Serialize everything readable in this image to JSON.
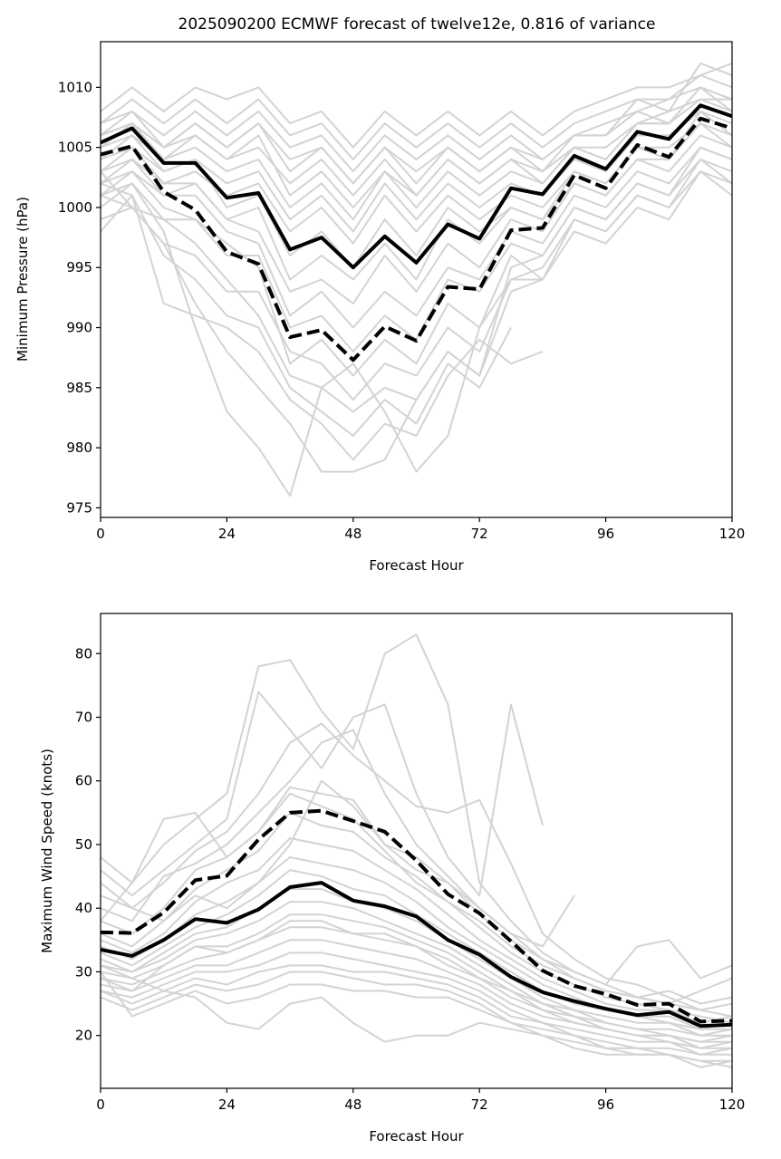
{
  "chart_data": [
    {
      "type": "line",
      "title": "2025090200 ECMWF forecast of twelve12e, 0.816 of variance",
      "xlabel": "Forecast Hour",
      "ylabel": "Minimum Pressure (hPa)",
      "xlim": [
        0,
        120
      ],
      "ylim": [
        974.2,
        1013.8
      ],
      "xticks": [
        0,
        24,
        48,
        72,
        96,
        120
      ],
      "yticks": [
        975,
        980,
        985,
        990,
        995,
        1000,
        1005,
        1010
      ],
      "grid": false,
      "x": [
        0,
        6,
        12,
        18,
        24,
        30,
        36,
        42,
        48,
        54,
        60,
        66,
        72,
        78,
        84,
        90,
        96,
        102,
        108,
        114,
        120
      ],
      "series": [
        {
          "name": "mean",
          "style": "solid",
          "color": "#000000",
          "values": [
            1005.4,
            1006.6,
            1003.7,
            1003.7,
            1000.8,
            1001.2,
            996.5,
            997.5,
            995.0,
            997.6,
            995.4,
            998.6,
            997.4,
            1001.6,
            1001.1,
            1004.3,
            1003.2,
            1006.3,
            1005.7,
            1008.5,
            1007.6
          ]
        },
        {
          "name": "weighted",
          "style": "dashed",
          "color": "#000000",
          "values": [
            1004.4,
            1005.1,
            1001.3,
            999.8,
            996.3,
            995.3,
            989.2,
            989.8,
            987.3,
            990.1,
            988.9,
            993.4,
            993.2,
            998.1,
            998.3,
            1002.7,
            1001.6,
            1005.2,
            1004.2,
            1007.4,
            1006.6
          ]
        }
      ],
      "members_color": "#d3d3d3",
      "members": [
        [
          1008,
          1010,
          1008,
          1010,
          1009,
          1010,
          1007,
          1008,
          1005,
          1008,
          1006,
          1008,
          1006,
          1008,
          1006,
          1008,
          1009,
          1010,
          1010,
          1011,
          1012
        ],
        [
          1007,
          1009,
          1007,
          1009,
          1007,
          1009,
          1006,
          1007,
          1004,
          1007,
          1005,
          1007,
          1005,
          1007,
          1005,
          1007,
          1008,
          1009,
          1008,
          1012,
          1011
        ],
        [
          1006,
          1008,
          1006,
          1008,
          1006,
          1008,
          1005,
          1006,
          1003,
          1006,
          1004,
          1006,
          1004,
          1006,
          1004,
          1006,
          1007,
          1008,
          1007,
          1010,
          1009
        ],
        [
          1007,
          1008,
          1005,
          1007,
          1005,
          1007,
          1003,
          1005,
          1002,
          1005,
          1002,
          1005,
          1003,
          1005,
          1003,
          1006,
          1006,
          1008,
          1009,
          1011,
          1010
        ],
        [
          1006,
          1007,
          1004,
          1006,
          1004,
          1005,
          1002,
          1004,
          1001,
          1004,
          1001,
          1004,
          1002,
          1004,
          1003,
          1005,
          1005,
          1007,
          1008,
          1009,
          1008
        ],
        [
          1005,
          1006,
          1004,
          1005,
          1003,
          1004,
          1000,
          1002,
          999,
          1003,
          1000,
          1003,
          1001,
          1003,
          1002,
          1005,
          1004,
          1007,
          1007,
          1009,
          1009
        ],
        [
          1004,
          1006,
          1003,
          1004,
          1002,
          1003,
          999,
          1001,
          998,
          1002,
          999,
          1002,
          1000,
          1002,
          1001,
          1004,
          1003,
          1006,
          1006,
          1008,
          1007
        ],
        [
          1004,
          1005,
          1002,
          1003,
          1001,
          1002,
          998,
          1000,
          997,
          1001,
          998,
          1001,
          999,
          1001,
          1000,
          1003,
          1002,
          1005,
          1005,
          1007,
          1006
        ],
        [
          1003,
          1005,
          1003,
          1004,
          1000,
          1001,
          996,
          998,
          995,
          999,
          996,
          1000,
          998,
          1000,
          999,
          1002,
          1001,
          1004,
          1004,
          1007,
          1005
        ],
        [
          1002,
          1004,
          1001,
          1002,
          999,
          1000,
          994,
          996,
          994,
          997,
          994,
          999,
          997,
          1000,
          999,
          1003,
          1002,
          1005,
          1004,
          1008,
          1006
        ],
        [
          1003,
          1004,
          1002,
          1002,
          999,
          998,
          993,
          994,
          992,
          996,
          993,
          997,
          995,
          999,
          998,
          1002,
          1001,
          1004,
          1003,
          1006,
          1005
        ],
        [
          1002,
          1003,
          1001,
          1001,
          998,
          997,
          991,
          993,
          990,
          993,
          991,
          995,
          994,
          998,
          997,
          1001,
          1000,
          1003,
          1002,
          1005,
          1004
        ],
        [
          1001,
          1003,
          1000,
          999,
          996,
          996,
          990,
          991,
          988,
          991,
          989,
          994,
          993,
          997,
          996,
          1000,
          999,
          1002,
          1001,
          1004,
          1003
        ],
        [
          1000,
          1002,
          999,
          999,
          997,
          995,
          987,
          989,
          986,
          989,
          987,
          992,
          990,
          996,
          994,
          999,
          998,
          1001,
          1000,
          1004,
          1002
        ],
        [
          1001,
          1000,
          997,
          996,
          993,
          993,
          988,
          987,
          984,
          987,
          986,
          990,
          988,
          994,
          994,
          998,
          997,
          1000,
          999,
          1003,
          1001
        ],
        [
          999,
          1000,
          999,
          997,
          994,
          991,
          986,
          985,
          983,
          985,
          984,
          988,
          986,
          993,
          994,
          null,
          null,
          null,
          null,
          null,
          null
        ],
        [
          998,
          1001,
          996,
          994,
          991,
          990,
          985,
          983,
          981,
          984,
          982,
          987,
          985,
          990,
          null,
          null,
          null,
          null,
          null,
          null,
          null
        ],
        [
          1002,
          1001,
          992,
          991,
          990,
          988,
          984,
          982,
          979,
          982,
          981,
          986,
          989,
          987,
          988,
          null,
          null,
          null,
          null,
          null,
          null
        ],
        [
          1003,
          1000,
          997,
          992,
          988,
          985,
          982,
          978,
          978,
          979,
          984,
          988,
          986,
          995,
          996,
          1000,
          999,
          1002,
          1001,
          1005,
          1004
        ],
        [
          1001,
          1002,
          998,
          990,
          983,
          980,
          976,
          985,
          987,
          983,
          978,
          981,
          990,
          994,
          995,
          999,
          998,
          1001,
          1000,
          1003,
          1002
        ],
        [
          1006,
          1007,
          1005,
          1006,
          1004,
          1006,
          1001,
          1003,
          1000,
          1003,
          1001,
          1004,
          1002,
          1004,
          1002,
          1005,
          1004,
          1007,
          1007,
          1010,
          1009
        ],
        [
          1005,
          1007,
          1005,
          1007,
          1005,
          1007,
          1004,
          1005,
          1002,
          1005,
          1003,
          1005,
          1003,
          1005,
          1004,
          1006,
          1006,
          1009,
          1009,
          1010,
          1008
        ]
      ]
    },
    {
      "type": "line",
      "title": "",
      "xlabel": "Forecast Hour",
      "ylabel": "Maximum Wind Speed (knots)",
      "xlim": [
        0,
        120
      ],
      "ylim": [
        11.7,
        86.3
      ],
      "xticks": [
        0,
        24,
        48,
        72,
        96,
        120
      ],
      "yticks": [
        20,
        30,
        40,
        50,
        60,
        70,
        80
      ],
      "grid": false,
      "x": [
        0,
        6,
        12,
        18,
        24,
        30,
        36,
        42,
        48,
        54,
        60,
        66,
        72,
        78,
        84,
        90,
        96,
        102,
        108,
        114,
        120
      ],
      "series": [
        {
          "name": "mean",
          "style": "solid",
          "color": "#000000",
          "values": [
            33.5,
            32.5,
            35.0,
            38.3,
            37.7,
            39.8,
            43.3,
            44.0,
            41.2,
            40.3,
            38.7,
            35.0,
            32.7,
            29.2,
            26.8,
            25.4,
            24.2,
            23.2,
            23.7,
            21.5,
            21.7
          ]
        },
        {
          "name": "weighted",
          "style": "dashed",
          "color": "#000000",
          "values": [
            36.2,
            36.1,
            39.3,
            44.4,
            45.1,
            50.8,
            55.0,
            55.3,
            53.7,
            52.0,
            47.5,
            42.2,
            39.2,
            34.8,
            30.2,
            27.8,
            26.5,
            24.8,
            25.0,
            22.2,
            22.3
          ]
        }
      ],
      "members_color": "#d3d3d3",
      "members": [
        [
          48,
          44,
          50,
          54,
          58,
          78,
          79,
          71,
          65,
          80,
          83,
          72,
          44,
          38,
          33,
          30,
          28,
          26,
          27,
          25,
          26
        ],
        [
          46,
          42,
          46,
          50,
          54,
          74,
          68,
          62,
          70,
          72,
          58,
          48,
          42,
          72,
          53,
          null,
          null,
          null,
          null,
          null,
          null
        ],
        [
          42,
          40,
          44,
          49,
          52,
          58,
          66,
          69,
          64,
          60,
          56,
          55,
          57,
          47,
          36,
          32,
          29,
          28,
          26,
          24,
          25
        ],
        [
          40,
          38,
          45,
          47,
          50,
          55,
          60,
          66,
          68,
          58,
          50,
          45,
          40,
          36,
          34,
          42,
          null,
          null,
          null,
          null,
          null
        ],
        [
          38,
          36,
          40,
          46,
          48,
          52,
          59,
          58,
          57,
          50,
          48,
          44,
          39,
          35,
          32,
          29,
          27,
          26,
          25,
          24,
          23
        ],
        [
          36,
          34,
          38,
          43,
          46,
          49,
          55,
          53,
          52,
          48,
          45,
          41,
          37,
          33,
          30,
          28,
          26,
          25,
          24,
          23,
          22
        ],
        [
          35,
          33,
          36,
          41,
          44,
          46,
          51,
          50,
          49,
          46,
          43,
          39,
          35,
          32,
          29,
          27,
          25,
          24,
          24,
          22,
          23
        ],
        [
          34,
          32,
          35,
          39,
          41,
          44,
          48,
          47,
          46,
          44,
          41,
          37,
          34,
          31,
          28,
          26,
          24,
          23,
          23,
          21,
          22
        ],
        [
          33,
          31,
          34,
          37,
          39,
          42,
          46,
          45,
          43,
          42,
          39,
          36,
          33,
          30,
          27,
          25,
          24,
          23,
          22,
          21,
          21
        ],
        [
          32,
          30,
          33,
          36,
          37,
          40,
          43,
          43,
          41,
          40,
          38,
          35,
          32,
          29,
          26,
          24,
          23,
          22,
          22,
          20,
          21
        ],
        [
          31,
          30,
          32,
          35,
          36,
          38,
          41,
          41,
          40,
          38,
          36,
          34,
          31,
          28,
          25,
          24,
          22,
          21,
          21,
          20,
          20
        ],
        [
          30,
          29,
          31,
          34,
          34,
          36,
          39,
          39,
          38,
          37,
          35,
          33,
          30,
          27,
          25,
          23,
          22,
          21,
          20,
          19,
          20
        ],
        [
          29,
          28,
          30,
          32,
          33,
          35,
          37,
          37,
          36,
          35,
          34,
          32,
          29,
          26,
          24,
          23,
          21,
          20,
          20,
          19,
          19
        ],
        [
          28,
          27,
          29,
          31,
          31,
          33,
          35,
          35,
          34,
          33,
          32,
          30,
          28,
          25,
          23,
          22,
          21,
          20,
          19,
          18,
          19
        ],
        [
          27,
          26,
          28,
          30,
          30,
          31,
          33,
          33,
          32,
          31,
          30,
          29,
          27,
          24,
          22,
          21,
          20,
          19,
          19,
          17,
          18
        ],
        [
          27,
          25,
          27,
          29,
          28,
          30,
          31,
          31,
          30,
          30,
          29,
          28,
          26,
          23,
          22,
          20,
          19,
          18,
          18,
          17,
          17
        ],
        [
          26,
          24,
          26,
          28,
          27,
          28,
          30,
          30,
          29,
          28,
          28,
          27,
          25,
          22,
          21,
          20,
          18,
          18,
          17,
          16,
          16
        ],
        [
          30,
          23,
          25,
          27,
          25,
          26,
          28,
          28,
          27,
          27,
          26,
          26,
          24,
          22,
          20,
          19,
          18,
          17,
          17,
          15,
          16
        ],
        [
          31,
          29,
          27,
          26,
          22,
          21,
          25,
          26,
          22,
          19,
          20,
          20,
          22,
          21,
          20,
          18,
          17,
          17,
          17,
          16,
          15
        ],
        [
          44,
          40,
          38,
          42,
          40,
          44,
          50,
          60,
          56,
          50,
          46,
          44,
          40,
          36,
          32,
          30,
          28,
          34,
          35,
          29,
          31
        ],
        [
          38,
          44,
          54,
          55,
          48,
          52,
          58,
          56,
          54,
          49,
          44,
          41,
          38,
          34,
          31,
          29,
          27,
          26,
          25,
          27,
          29
        ],
        [
          29,
          27,
          31,
          34,
          33,
          35,
          38,
          38,
          36,
          36,
          34,
          31,
          29,
          27,
          24,
          22,
          21,
          20,
          20,
          18,
          18
        ]
      ]
    }
  ]
}
